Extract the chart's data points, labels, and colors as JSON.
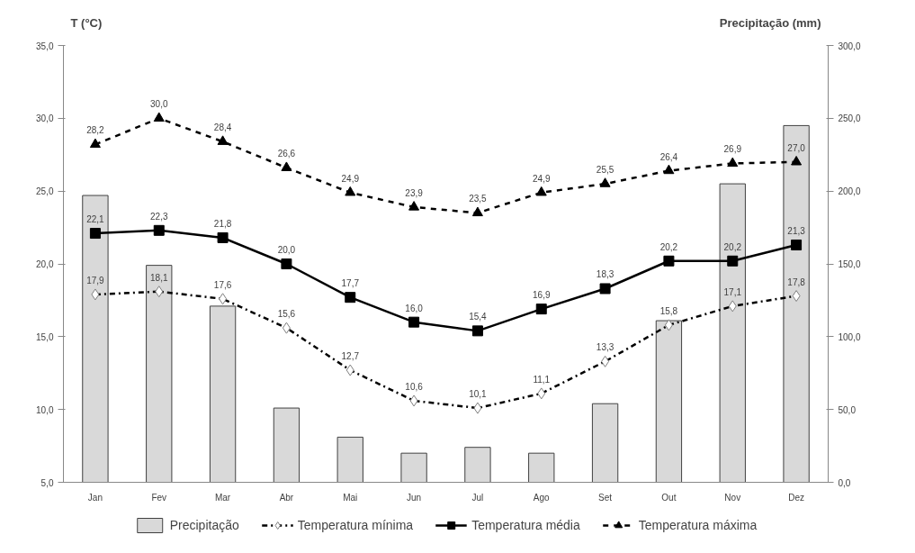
{
  "chart_data": {
    "type": "line",
    "ylabel": "T (°C)",
    "y2label": "Precipitação (mm)",
    "categories": [
      "Jan",
      "Fev",
      "Mar",
      "Abr",
      "Mai",
      "Jun",
      "Jul",
      "Ago",
      "Set",
      "Out",
      "Nov",
      "Dez"
    ],
    "series": [
      {
        "name": "Precipitação",
        "type": "bar",
        "axis": "y2",
        "color": "#d9d9d9",
        "values": [
          197,
          149,
          121,
          51,
          31,
          20,
          24,
          20,
          54,
          111,
          205,
          245
        ]
      },
      {
        "name": "Temperatura mínima",
        "color": "#000000",
        "marker": "diamond",
        "line_style": "dashdot",
        "values": [
          17.9,
          18.1,
          17.6,
          15.6,
          12.7,
          10.6,
          10.1,
          11.1,
          13.3,
          15.8,
          17.1,
          17.8
        ],
        "value_labels": [
          "17,9",
          "18,1",
          "17,6",
          "15,6",
          "12,7",
          "10,6",
          "10,1",
          "11,1",
          "13,3",
          "15,8",
          "17,1",
          "17,8"
        ]
      },
      {
        "name": "Temperatura média",
        "color": "#000000",
        "marker": "square",
        "line_style": "solid",
        "values": [
          22.1,
          22.3,
          21.8,
          20.0,
          17.7,
          16.0,
          15.4,
          16.9,
          18.3,
          20.2,
          20.2,
          21.3
        ],
        "value_labels": [
          "22,1",
          "22,3",
          "21,8",
          "20,0",
          "17,7",
          "16,0",
          "15,4",
          "16,9",
          "18,3",
          "20,2",
          "20,2",
          "21,3"
        ]
      },
      {
        "name": "Temperatura máxima",
        "color": "#000000",
        "marker": "triangle",
        "line_style": "dashed",
        "values": [
          28.2,
          30.0,
          28.4,
          26.6,
          24.9,
          23.9,
          23.5,
          24.9,
          25.5,
          26.4,
          26.9,
          27.0
        ],
        "value_labels": [
          "28,2",
          "30,0",
          "28,4",
          "26,6",
          "24,9",
          "23,9",
          "23,5",
          "24,9",
          "25,5",
          "26,4",
          "26,9",
          "27,0"
        ]
      }
    ],
    "ylim": [
      5,
      35
    ],
    "yticks": [
      {
        "value": 5,
        "label": "5,0"
      },
      {
        "value": 10,
        "label": "10,0"
      },
      {
        "value": 15,
        "label": "15,0"
      },
      {
        "value": 20,
        "label": "20,0"
      },
      {
        "value": 25,
        "label": "25,0"
      },
      {
        "value": 30,
        "label": "30,0"
      },
      {
        "value": 35,
        "label": "35,0"
      }
    ],
    "y2lim": [
      0,
      300
    ],
    "y2ticks": [
      {
        "value": 0,
        "label": "0,0"
      },
      {
        "value": 50,
        "label": "50,0"
      },
      {
        "value": 100,
        "label": "100,0"
      },
      {
        "value": 150,
        "label": "150,0"
      },
      {
        "value": 200,
        "label": "200,0"
      },
      {
        "value": 250,
        "label": "250,0"
      },
      {
        "value": 300,
        "label": "300,0"
      }
    ],
    "grid": false,
    "legend": "bottom"
  }
}
